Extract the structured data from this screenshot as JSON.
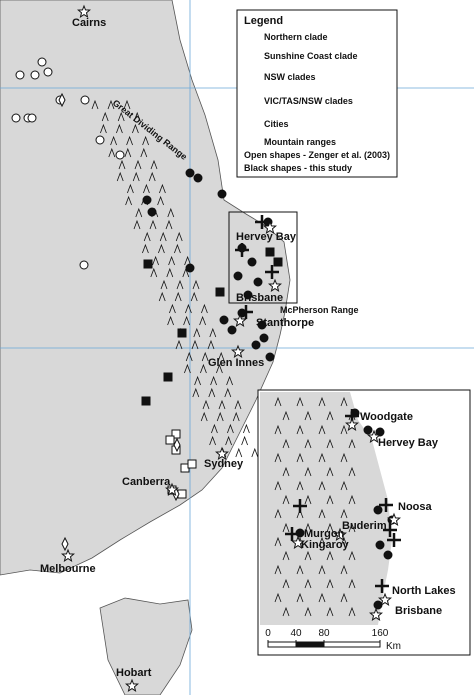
{
  "map": {
    "places": [
      "Cairns",
      "Great Dividing Range",
      "Hervey Bay",
      "Brisbane",
      "McPherson Range",
      "Stanthorpe",
      "Glen Innes",
      "Sydney",
      "Canberra",
      "Melbourne",
      "Hobart"
    ]
  },
  "legend": {
    "title": "Legend",
    "items": [
      "Northern clade",
      "Sunshine Coast clade",
      "NSW clades",
      "VIC/TAS/NSW clades",
      "Cities",
      "Mountain ranges"
    ],
    "notes": [
      "Open shapes - Zenger et al. (2003)",
      "Black shapes - this study"
    ]
  },
  "inset": {
    "places": [
      "Woodgate",
      "Hervey Bay",
      "Noosa",
      "Murgon",
      "Buderim",
      "Kingaroy",
      "North Lakes",
      "Brisbane"
    ],
    "scale": {
      "ticks": [
        0,
        40,
        80,
        160
      ],
      "unit": "Km"
    }
  }
}
